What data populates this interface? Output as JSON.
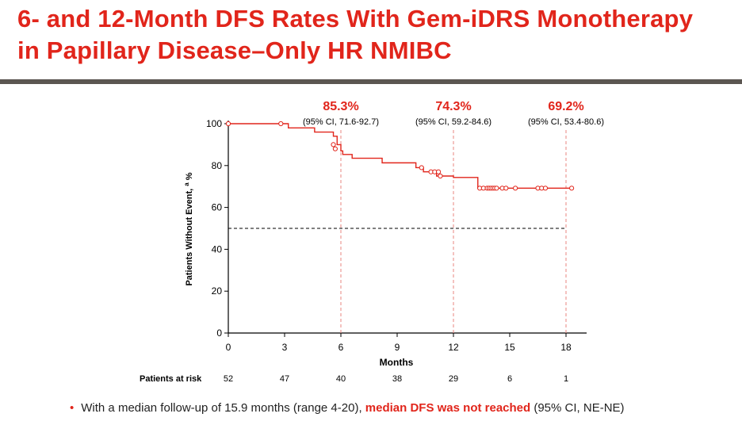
{
  "slide": {
    "title_line1": "6- and 12-Month DFS Rates With Gem-iDRS Monotherapy",
    "title_line2": "in Papillary Disease–Only HR NMIBC"
  },
  "chart_data": {
    "type": "line",
    "subtype": "kaplan-meier",
    "xlabel": "Months",
    "ylabel": "Patients Without Event,",
    "ylabel_sup": "a",
    "ylabel_unit": "%",
    "xlim": [
      0,
      18.5
    ],
    "ylim": [
      0,
      100
    ],
    "x_ticks": [
      0,
      3,
      6,
      9,
      12,
      15,
      18
    ],
    "y_ticks": [
      0,
      20,
      40,
      60,
      80,
      100
    ],
    "median_line_y": 50,
    "color": "#e1251b",
    "curve": {
      "x": [
        0,
        2.9,
        3.2,
        4.6,
        5.6,
        5.8,
        6.0,
        6.1,
        6.6,
        8.2,
        10.0,
        10.4,
        10.6,
        11.1,
        11.4,
        12.0,
        13.3
      ],
      "y": [
        100,
        100,
        98,
        96,
        94,
        90,
        87,
        85.3,
        83.5,
        81.3,
        79,
        77,
        77,
        75,
        75,
        74.3,
        69.2
      ]
    },
    "censored": {
      "x": [
        0,
        2.8,
        5.6,
        5.7,
        10.3,
        10.8,
        11.0,
        11.2,
        11.3,
        13.4,
        13.6,
        13.8,
        13.9,
        14.0,
        14.1,
        14.2,
        14.3,
        14.6,
        14.8,
        15.3,
        16.5,
        16.7,
        16.9,
        18.3
      ],
      "y": [
        100,
        100,
        90,
        88,
        79,
        77,
        77,
        77,
        75,
        69.2,
        69.2,
        69.2,
        69.2,
        69.2,
        69.2,
        69.2,
        69.2,
        69.2,
        69.2,
        69.2,
        69.2,
        69.2,
        69.2,
        69.2
      ]
    },
    "end_x": 18.3,
    "landmarks": [
      {
        "x": 6,
        "rate": "85.3%",
        "ci": "(95% CI, 71.6-92.7)"
      },
      {
        "x": 12,
        "rate": "74.3%",
        "ci": "(95% CI, 59.2-84.6)"
      },
      {
        "x": 18,
        "rate": "69.2%",
        "ci": "(95% CI, 53.4-80.6)"
      }
    ],
    "at_risk": {
      "label": "Patients at risk",
      "x": [
        0,
        3,
        6,
        9,
        12,
        15,
        18
      ],
      "values": [
        "52",
        "47",
        "40",
        "38",
        "29",
        "6",
        "1"
      ]
    }
  },
  "footnote": {
    "text_before": "With a median follow-up of 15.9 months (range 4-20), ",
    "highlight": "median DFS was not reached",
    "text_after": " (95% CI, NE-NE)"
  }
}
